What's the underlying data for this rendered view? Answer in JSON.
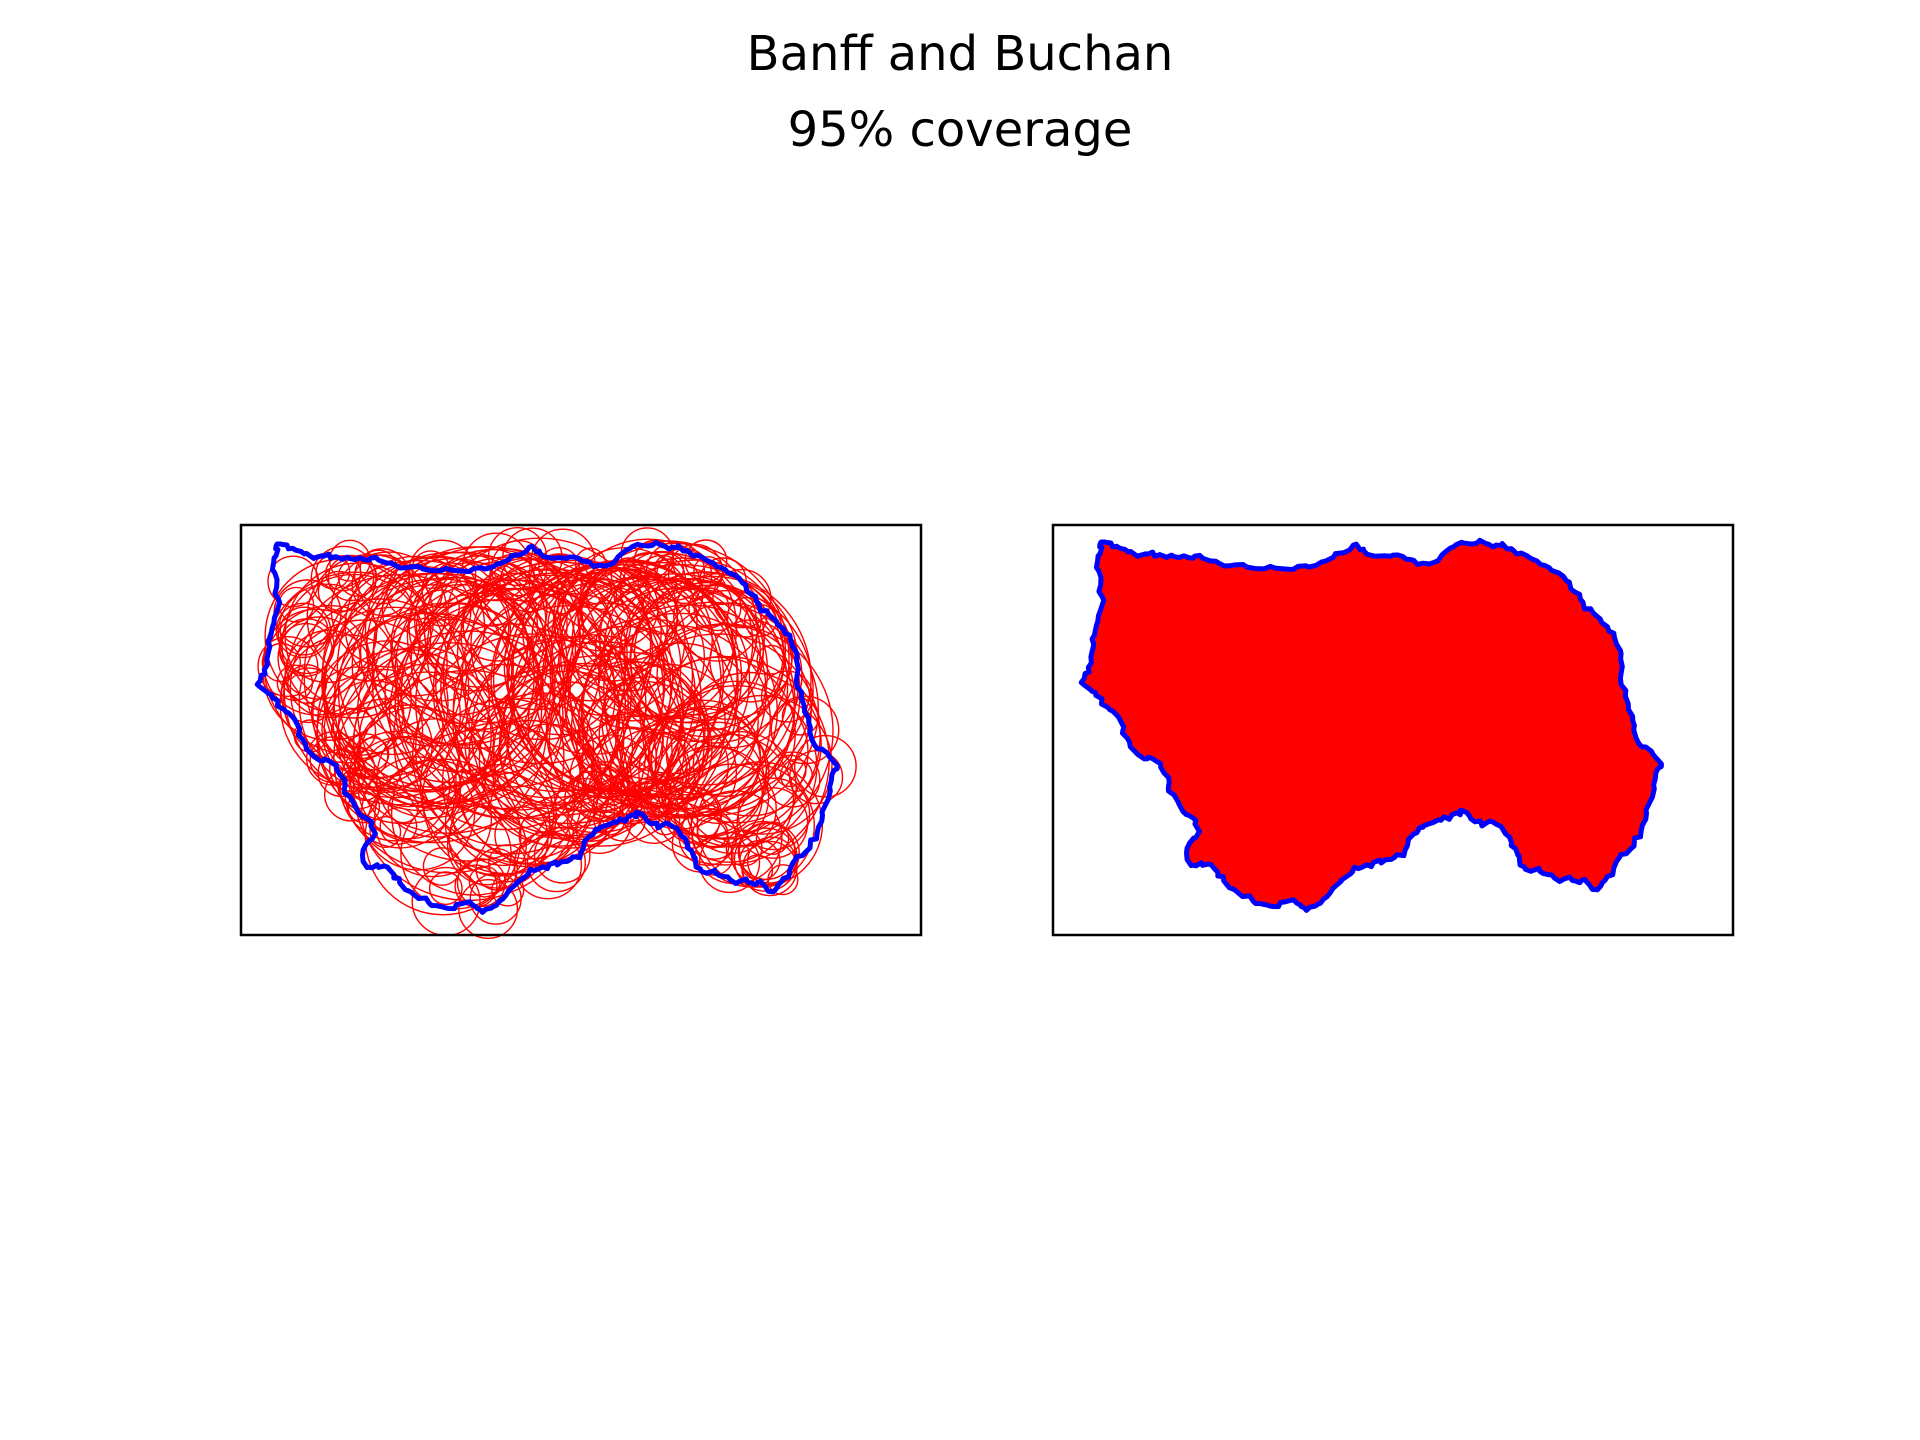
{
  "figure": {
    "title": "Banff and Buchan",
    "subtitle": "95% coverage"
  },
  "colors": {
    "boundary": "#0000ff",
    "coverage": "#ff0000",
    "frame": "#000000",
    "background": "#ffffff"
  },
  "panels": [
    {
      "name": "circle-coverage-panel",
      "style": "circle outlines",
      "has_axis_ticks": false
    },
    {
      "name": "filled-coverage-panel",
      "style": "filled union",
      "has_axis_ticks": false
    }
  ]
}
